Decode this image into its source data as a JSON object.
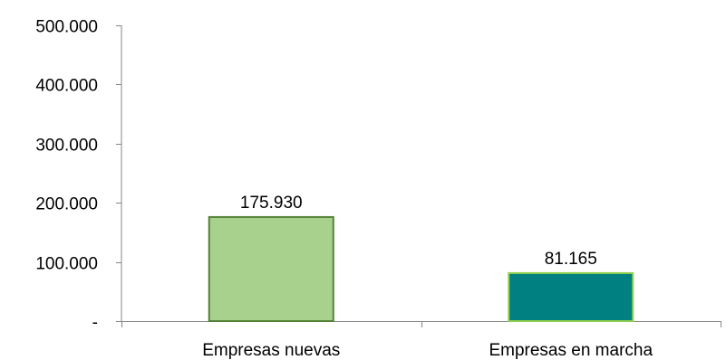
{
  "chart_data": {
    "type": "bar",
    "title": "",
    "xlabel": "",
    "ylabel": "",
    "categories": [
      "Empresas nuevas",
      "Empresas en marcha"
    ],
    "values": [
      175930,
      81165
    ],
    "value_labels": [
      "175.930",
      "81.165"
    ],
    "ylim": [
      0,
      500000
    ],
    "y_ticks": [
      0,
      100000,
      200000,
      300000,
      400000,
      500000
    ],
    "y_tick_labels": [
      "-",
      "100.000",
      "200.000",
      "300.000",
      "400.000",
      "500.000"
    ],
    "grid": false,
    "legend": "none",
    "colors": {
      "bar_fills": [
        "#a9d18e",
        "#008080"
      ],
      "bar_strokes": [
        "#548235",
        "#92d050"
      ],
      "axis": "#868686"
    }
  }
}
